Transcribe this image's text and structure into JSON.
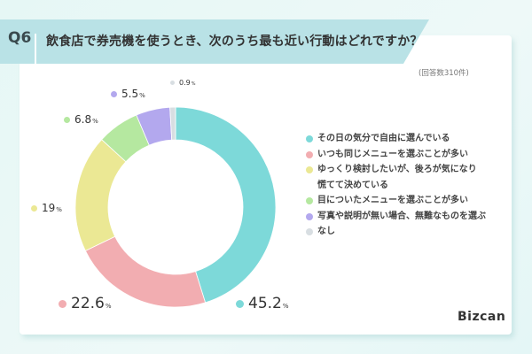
{
  "header": {
    "question_number": "Q6",
    "title": "飲食店で券売機を使うとき、次のうち最も近い行動はどれですか？",
    "response_count": "(回答数310件)"
  },
  "chart_data": {
    "type": "pie",
    "variant": "donut",
    "title": "飲食店で券売機を使うとき、次のうち最も近い行動はどれですか？",
    "note": "(回答数310件)",
    "categories": [
      "その日の気分で自由に選んでいる",
      "いつも同じメニューを選ぶことが多い",
      "ゆっくり検討したいが、後ろが気になり慌てて決めている",
      "目についたメニューを選ぶことが多い",
      "写真や説明が無い場合、無難なものを選ぶ",
      "なし"
    ],
    "values": [
      45.2,
      22.6,
      19,
      6.8,
      5.5,
      0.9
    ],
    "unit": "%",
    "colors": [
      "#7dd9d9",
      "#f2adb1",
      "#ebe894",
      "#b5e8a0",
      "#b3a8ee",
      "#d8dee2"
    ],
    "legend_position": "right"
  },
  "labels": [
    {
      "value": "45.2",
      "unit": "%"
    },
    {
      "value": "22.6",
      "unit": "%"
    },
    {
      "value": "19",
      "unit": "%"
    },
    {
      "value": "6.8",
      "unit": "%"
    },
    {
      "value": "5.5",
      "unit": "%"
    },
    {
      "value": "0.9",
      "unit": "%"
    }
  ],
  "legend": [
    {
      "label": "その日の気分で自由に選んでいる"
    },
    {
      "label": "いつも同じメニューを選ぶことが多い"
    },
    {
      "label": "ゆっくり検討したいが、後ろが気になり\n慌てて決めている"
    },
    {
      "label": "目についたメニューを選ぶことが多い"
    },
    {
      "label": "写真や説明が無い場合、無難なものを選ぶ"
    },
    {
      "label": "なし"
    }
  ],
  "brand": {
    "logo": "Bizcan"
  }
}
